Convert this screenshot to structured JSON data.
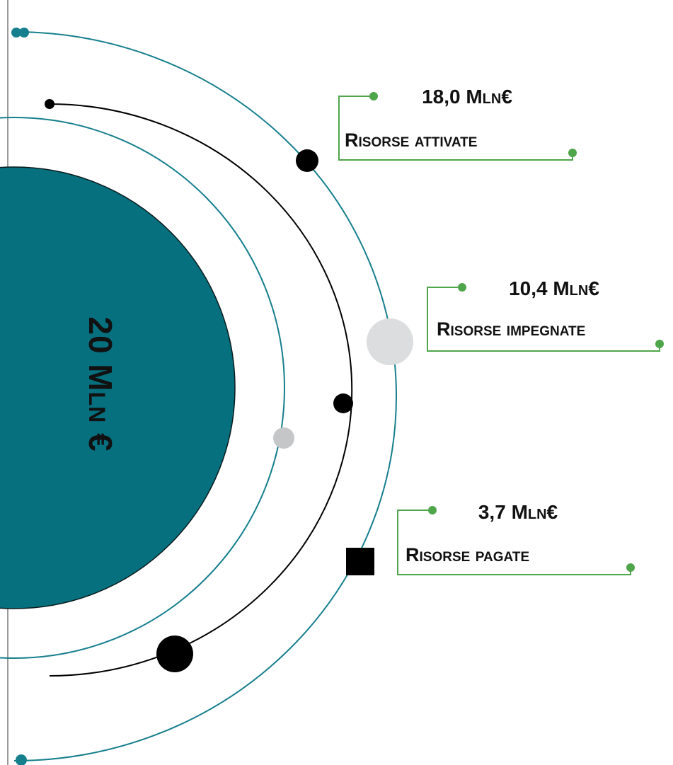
{
  "center": {
    "label": "20 Mln €"
  },
  "callouts": [
    {
      "value": "18,0 Mln€",
      "label": "Risorse attivate"
    },
    {
      "value": "10,4 Mln€",
      "label": "Risorse impegnate"
    },
    {
      "value": "3,7 Mln€",
      "label": "Risorse pagate"
    }
  ],
  "colors": {
    "teal": "#06707F",
    "orbit_teal": "#167F8D",
    "black": "#000000",
    "callout_green": "#4EA54A",
    "light_gray": "#DCDDDE",
    "mid_gray": "#C4C6C8",
    "left_rule": "#9A9A9A"
  }
}
